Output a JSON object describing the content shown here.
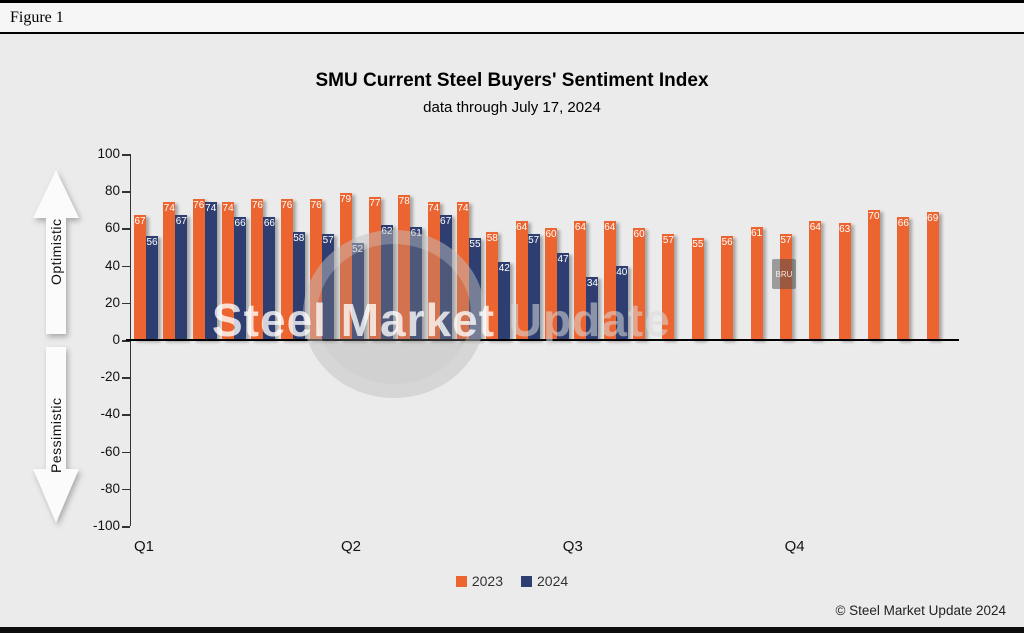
{
  "figure_label": "Figure 1",
  "chart_data": {
    "type": "bar",
    "title": "SMU Current Steel Buyers' Sentiment Index",
    "subtitle": "data through July 17, 2024",
    "ylim": [
      -100,
      100
    ],
    "y_ticks": [
      100,
      80,
      60,
      40,
      20,
      0,
      -20,
      -40,
      -60,
      -80,
      -100
    ],
    "grid": false,
    "legend_position": "bottom",
    "num_slots": 28,
    "x_quarter_labels": [
      {
        "label": "Q1",
        "slot": 0
      },
      {
        "label": "Q2",
        "slot": 7
      },
      {
        "label": "Q3",
        "slot": 14.5
      },
      {
        "label": "Q4",
        "slot": 22
      }
    ],
    "axis_annotations": {
      "positive": "Optimistic",
      "negative": "Pessimistic"
    },
    "series": [
      {
        "name": "2023",
        "color": "#ec6430",
        "values": [
          67,
          74,
          76,
          74,
          76,
          76,
          76,
          79,
          77,
          78,
          74,
          74,
          58,
          64,
          60,
          64,
          64,
          60,
          57,
          55,
          56,
          61,
          57,
          64,
          63,
          70,
          66,
          69
        ]
      },
      {
        "name": "2024",
        "color": "#2e3e70",
        "values": [
          56,
          67,
          74,
          66,
          66,
          58,
          57,
          52,
          62,
          61,
          67,
          55,
          42,
          57,
          47,
          34,
          40
        ]
      }
    ]
  },
  "watermark": {
    "text_primary": "Steel Market ",
    "text_secondary": "Update",
    "badge": "BRU"
  },
  "footer": {
    "copyright": "© Steel Market Update 2024"
  }
}
